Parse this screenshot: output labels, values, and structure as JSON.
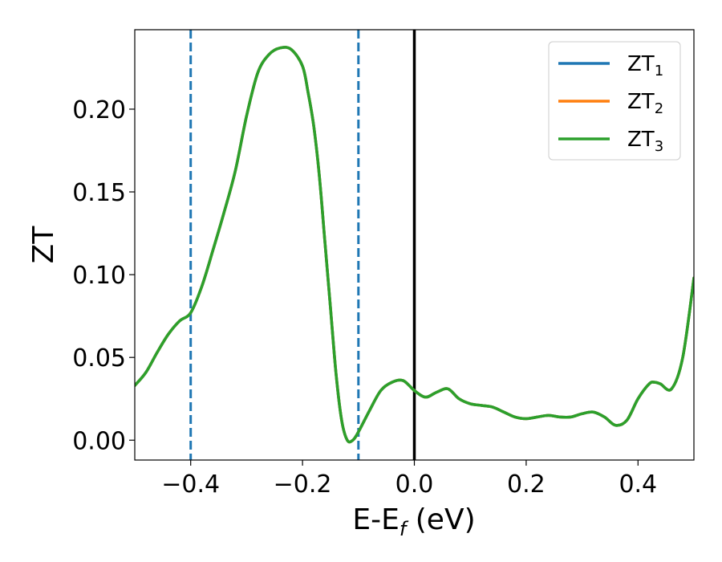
{
  "chart_data": {
    "type": "line",
    "xlabel_main": "E-E",
    "xlabel_sub": "f",
    "xlabel_tail": " (eV)",
    "ylabel": "ZT",
    "xlim": [
      -0.5,
      0.5
    ],
    "ylim": [
      -0.012,
      0.248
    ],
    "x_ticks": [
      -0.4,
      -0.2,
      0.0,
      0.2,
      0.4
    ],
    "x_tick_labels": [
      "−0.4",
      "−0.2",
      "0.0",
      "0.2",
      "0.4"
    ],
    "y_ticks": [
      0.0,
      0.05,
      0.1,
      0.15,
      0.2
    ],
    "y_tick_labels": [
      "0.00",
      "0.05",
      "0.10",
      "0.15",
      "0.20"
    ],
    "grid": false,
    "legend_position": "top-right",
    "legend": [
      {
        "base": "ZT",
        "sub": "1",
        "color": "#1f77b4"
      },
      {
        "base": "ZT",
        "sub": "2",
        "color": "#ff7f0e"
      },
      {
        "base": "ZT",
        "sub": "3",
        "color": "#2ca02c"
      }
    ],
    "vlines": [
      {
        "x": -0.4,
        "style": "dashed",
        "color": "#1f77b4"
      },
      {
        "x": -0.1,
        "style": "dashed",
        "color": "#1f77b4"
      },
      {
        "x": 0.0,
        "style": "solid",
        "color": "#000000"
      }
    ],
    "x": [
      -0.5,
      -0.48,
      -0.46,
      -0.44,
      -0.42,
      -0.4,
      -0.38,
      -0.36,
      -0.34,
      -0.32,
      -0.3,
      -0.28,
      -0.26,
      -0.24,
      -0.22,
      -0.2,
      -0.19,
      -0.18,
      -0.17,
      -0.16,
      -0.15,
      -0.14,
      -0.13,
      -0.12,
      -0.11,
      -0.1,
      -0.08,
      -0.06,
      -0.04,
      -0.02,
      0.0,
      0.02,
      0.04,
      0.06,
      0.08,
      0.1,
      0.12,
      0.14,
      0.16,
      0.18,
      0.2,
      0.22,
      0.24,
      0.26,
      0.28,
      0.3,
      0.32,
      0.34,
      0.36,
      0.38,
      0.4,
      0.42,
      0.43,
      0.44,
      0.46,
      0.48,
      0.5
    ],
    "series": [
      {
        "name": "ZT1",
        "color": "#1f77b4",
        "values": [
          0.033,
          0.041,
          0.053,
          0.064,
          0.072,
          0.077,
          0.093,
          0.115,
          0.138,
          0.163,
          0.196,
          0.222,
          0.233,
          0.237,
          0.236,
          0.226,
          0.21,
          0.19,
          0.16,
          0.12,
          0.08,
          0.04,
          0.012,
          0.0,
          0.0,
          0.005,
          0.018,
          0.03,
          0.035,
          0.036,
          0.03,
          0.026,
          0.029,
          0.031,
          0.025,
          0.022,
          0.021,
          0.02,
          0.017,
          0.014,
          0.013,
          0.014,
          0.015,
          0.014,
          0.014,
          0.016,
          0.017,
          0.014,
          0.009,
          0.012,
          0.025,
          0.034,
          0.035,
          0.034,
          0.031,
          0.05,
          0.098
        ]
      },
      {
        "name": "ZT2",
        "color": "#ff7f0e",
        "values": [
          0.033,
          0.041,
          0.053,
          0.064,
          0.072,
          0.077,
          0.093,
          0.115,
          0.138,
          0.163,
          0.196,
          0.222,
          0.233,
          0.237,
          0.236,
          0.226,
          0.21,
          0.19,
          0.16,
          0.12,
          0.08,
          0.04,
          0.012,
          0.0,
          0.0,
          0.005,
          0.018,
          0.03,
          0.035,
          0.036,
          0.03,
          0.026,
          0.029,
          0.031,
          0.025,
          0.022,
          0.021,
          0.02,
          0.017,
          0.014,
          0.013,
          0.014,
          0.015,
          0.014,
          0.014,
          0.016,
          0.017,
          0.014,
          0.009,
          0.012,
          0.025,
          0.034,
          0.035,
          0.034,
          0.031,
          0.05,
          0.098
        ]
      },
      {
        "name": "ZT3",
        "color": "#2ca02c",
        "values": [
          0.033,
          0.041,
          0.053,
          0.064,
          0.072,
          0.077,
          0.093,
          0.115,
          0.138,
          0.163,
          0.196,
          0.222,
          0.233,
          0.237,
          0.236,
          0.226,
          0.21,
          0.19,
          0.16,
          0.12,
          0.08,
          0.04,
          0.012,
          0.0,
          0.0,
          0.005,
          0.018,
          0.03,
          0.035,
          0.036,
          0.03,
          0.026,
          0.029,
          0.031,
          0.025,
          0.022,
          0.021,
          0.02,
          0.017,
          0.014,
          0.013,
          0.014,
          0.015,
          0.014,
          0.014,
          0.016,
          0.017,
          0.014,
          0.009,
          0.012,
          0.025,
          0.034,
          0.035,
          0.034,
          0.031,
          0.05,
          0.098
        ]
      }
    ]
  }
}
